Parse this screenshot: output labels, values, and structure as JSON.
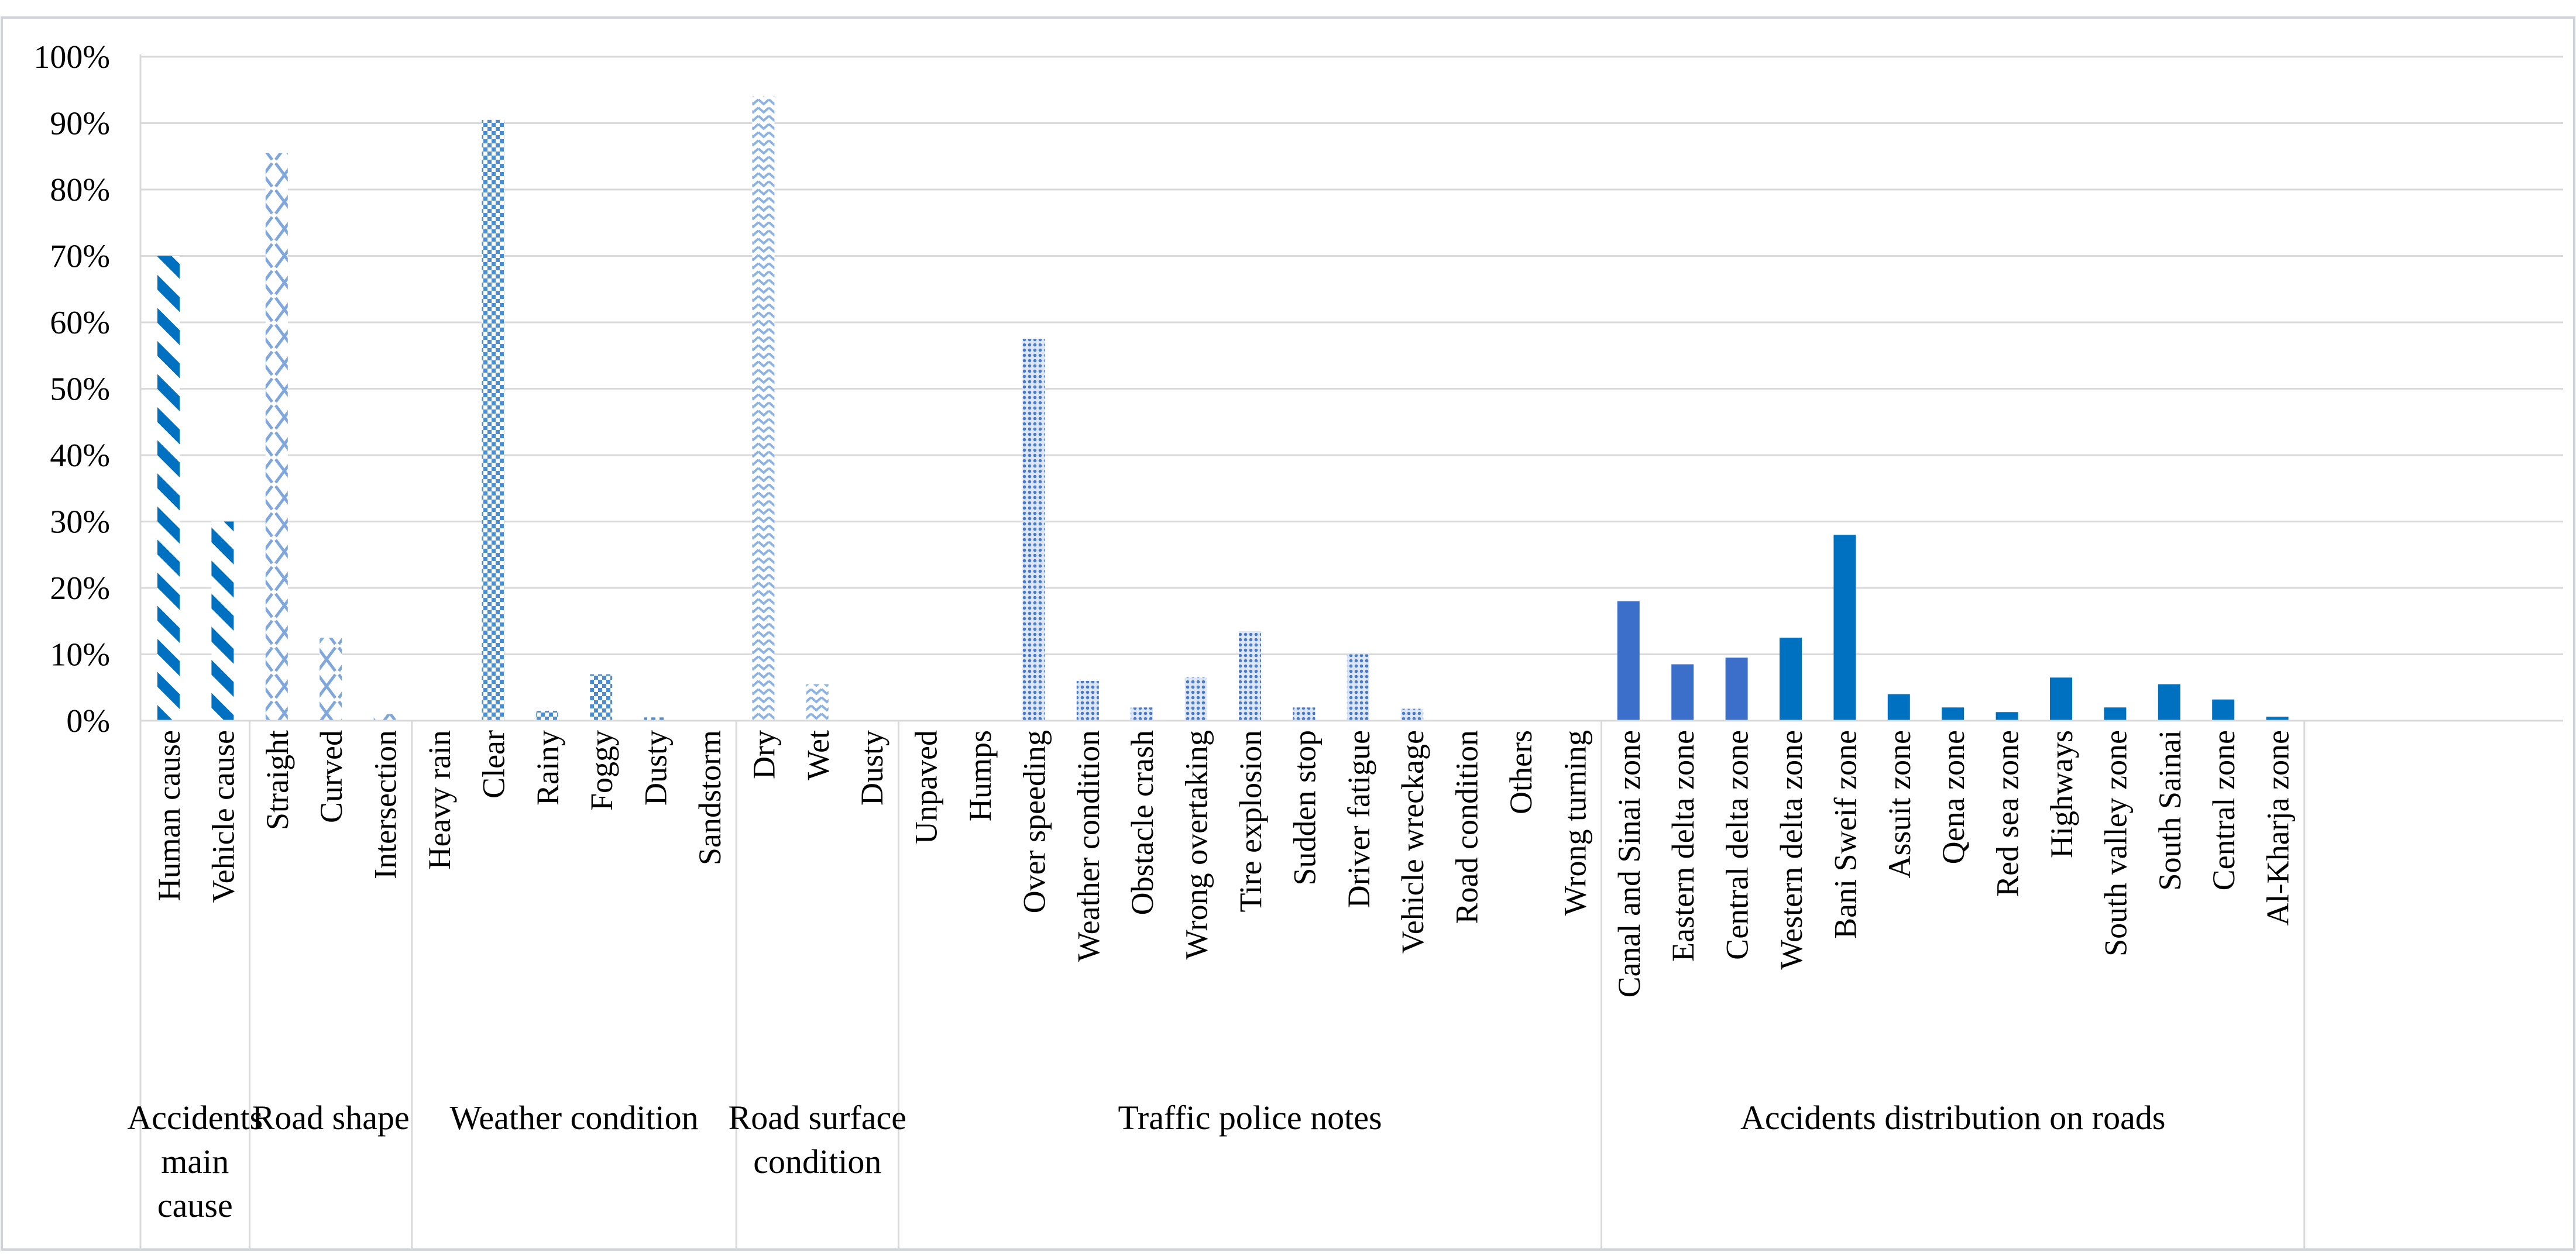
{
  "chart_data": {
    "type": "bar",
    "title": "",
    "xlabel": "",
    "ylabel": "",
    "ylim": [
      0,
      100
    ],
    "y_ticks": [
      "0%",
      "10%",
      "20%",
      "30%",
      "40%",
      "50%",
      "60%",
      "70%",
      "80%",
      "90%",
      "100%"
    ],
    "grid": true,
    "legend": "none",
    "groups": [
      {
        "name": "Accidents main cause",
        "name_lines": [
          "Accidents",
          "main",
          "cause"
        ],
        "pattern": "diag",
        "color": "#0070C0",
        "categories": [
          "Human cause",
          "Vehicle cause"
        ],
        "values": [
          70,
          30
        ]
      },
      {
        "name": "Road shape",
        "name_lines": [
          "Road shape"
        ],
        "pattern": "cross",
        "color": "#7FA7DC",
        "categories": [
          "Straight",
          "Curved",
          "Intersection"
        ],
        "values": [
          85.5,
          12.5,
          1
        ]
      },
      {
        "name": "Weather condition",
        "name_lines": [
          "Weather condition"
        ],
        "pattern": "checker",
        "color": "#4C8CD0",
        "categories": [
          "Heavy rain",
          "Clear",
          "Rainy",
          "Foggy",
          "Dusty",
          "Sandstorm"
        ],
        "values": [
          0,
          90.5,
          1.5,
          7,
          0.5,
          0
        ]
      },
      {
        "name": "Road surface condition",
        "name_lines": [
          "Road surface",
          "condition"
        ],
        "pattern": "zigzag",
        "color": "#8BB2E3",
        "categories": [
          "Dry",
          "Wet",
          "Dusty"
        ],
        "values": [
          94,
          5.5,
          0
        ]
      },
      {
        "name": "Traffic police notes",
        "name_lines": [
          "Traffic police notes"
        ],
        "pattern": "dots",
        "color": "#4A7BC6",
        "categories": [
          "Unpaved",
          "Humps",
          "Over speeding",
          "Weather condition",
          "Obstacle crash",
          "Wrong overtaking",
          "Tire explosion",
          "Sudden stop",
          "Driver fatigue",
          "Vehicle wreckage",
          "Road condition",
          "Others",
          "Wrong turning"
        ],
        "values": [
          0,
          0,
          57.5,
          6,
          2,
          6.5,
          13.5,
          2,
          10,
          1.8,
          0,
          0,
          0
        ]
      },
      {
        "name": "Accidents distribution on roads",
        "name_lines": [
          "Accidents distribution on roads"
        ],
        "pattern": "solid",
        "color": "#0070C0",
        "categories": [
          "Canal and Sinai zone",
          "Eastern delta zone",
          "Central delta zone",
          "Western delta zone",
          "Bani Sweif zone",
          "Assuit zone",
          "Qena zone",
          "Red sea zone",
          "Highways",
          "South valley zone",
          "South Sainai",
          "Central zone",
          "Al-Kharja zone"
        ],
        "values": [
          18,
          8.5,
          9.5,
          12.5,
          28,
          4,
          2,
          1.3,
          6.5,
          2,
          5.5,
          3.2,
          0.6
        ],
        "bar_colors": [
          "#3B6FC9",
          "#3B6FC9",
          "#3B6FC9",
          "#0070C0",
          "#0070C0",
          "#0070C0",
          "#0070C0",
          "#0070C0",
          "#0070C0",
          "#0070C0",
          "#0070C0",
          "#0070C0",
          "#0070C0"
        ]
      }
    ]
  }
}
